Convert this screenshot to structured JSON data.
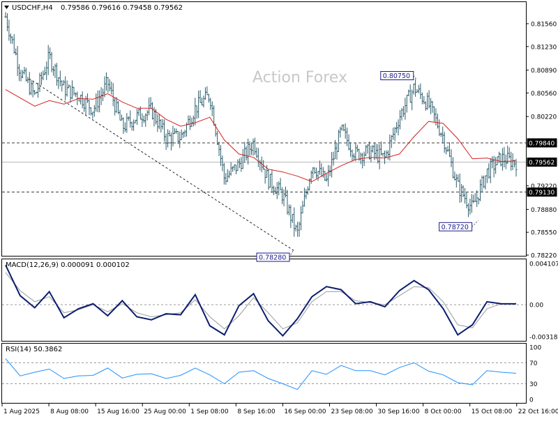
{
  "header": {
    "symbol": "USDCHF,H4",
    "ohlc": "0.79586 0.79616 0.79458 0.79562"
  },
  "watermark": "Action Forex",
  "colors": {
    "price_bars": "#2b5c6b",
    "ma_line": "#d42020",
    "macd_line": "#0b1d6e",
    "signal_line": "#9a9a9a",
    "rsi_line": "#1e90ff",
    "label_border": "#1a1a8c",
    "grid_dash": "#3c3c3c"
  },
  "price_panel": {
    "y_ticks": [
      "0.81560",
      "0.81230",
      "0.80890",
      "0.80560",
      "0.80220",
      "0.79220",
      "0.78880",
      "0.78550",
      "0.78220"
    ],
    "current_price": "0.79562",
    "levels": [
      {
        "value": 0.7984,
        "label": "0.79840"
      },
      {
        "value": 0.7913,
        "label": "0.79130"
      }
    ],
    "annotations": [
      {
        "label": "0.80750",
        "value": 0.8075,
        "date_index": 28.2
      },
      {
        "label": "0.78720",
        "value": 0.7872,
        "date_index": 32.4
      },
      {
        "label": "0.78280",
        "value": 0.7828,
        "date_index": 19.7
      }
    ]
  },
  "macd_panel": {
    "label": "MACD(12,26,9) 0.000091 0.000102",
    "y_ticks": [
      "0.004107",
      "0.00",
      "-0.00318"
    ]
  },
  "rsi_panel": {
    "label": "RSI(14) 50.3862",
    "y_ticks": [
      "100",
      "70",
      "30",
      "0"
    ]
  },
  "x_ticks": [
    "1 Aug 2025",
    "8 Aug 08:00",
    "15 Aug 16:00",
    "25 Aug 00:00",
    "1 Sep 08:00",
    "8 Sep 16:00",
    "16 Sep 00:00",
    "23 Sep 08:00",
    "30 Sep 16:00",
    "8 Oct 00:00",
    "15 Oct 08:00",
    "22 Oct 16:00"
  ],
  "chart_data": [
    {
      "type": "line",
      "title": "USDCHF,H4",
      "x_unit": "trading days since 1 Aug 2025 (approx.)",
      "x": [
        0,
        1,
        2,
        3,
        4,
        5,
        6,
        7,
        8,
        9,
        10,
        11,
        12,
        13,
        14,
        15,
        16,
        17,
        18,
        19,
        20,
        21,
        22,
        23,
        24,
        25,
        26,
        27,
        28,
        29,
        30,
        31,
        32,
        33,
        34,
        35
      ],
      "series": [
        {
          "name": "close",
          "values": [
            0.8166,
            0.8088,
            0.8052,
            0.8108,
            0.8062,
            0.8053,
            0.8032,
            0.8071,
            0.8006,
            0.8022,
            0.8031,
            0.7992,
            0.7992,
            0.8034,
            0.8053,
            0.7932,
            0.7953,
            0.7985,
            0.7931,
            0.7909,
            0.7852,
            0.7953,
            0.7928,
            0.8002,
            0.7968,
            0.7971,
            0.7962,
            0.8022,
            0.8064,
            0.8039,
            0.7993,
            0.7921,
            0.7889,
            0.7942,
            0.7962,
            0.7956
          ]
        },
        {
          "name": "MA",
          "values": [
            0.8061,
            0.8049,
            0.8037,
            0.8045,
            0.804,
            0.8048,
            0.8047,
            0.8055,
            0.8043,
            0.8034,
            0.8034,
            0.8018,
            0.8008,
            0.8013,
            0.8021,
            0.7988,
            0.7968,
            0.7963,
            0.7946,
            0.7942,
            0.7936,
            0.7928,
            0.794,
            0.7951,
            0.796,
            0.7963,
            0.7962,
            0.7968,
            0.7993,
            0.8015,
            0.8012,
            0.799,
            0.7961,
            0.7962,
            0.7957,
            0.7958
          ]
        }
      ],
      "ylim": [
        0.7822,
        0.8166
      ],
      "y_ticks": [
        0.8156,
        0.8123,
        0.8089,
        0.8056,
        0.8022,
        0.7922,
        0.7888,
        0.7855,
        0.7822
      ],
      "levels": [
        0.7984,
        0.7913
      ],
      "annotations": [
        "0.80750",
        "0.78720",
        "0.78280"
      ]
    },
    {
      "type": "line",
      "title": "MACD(12,26,9)",
      "x": [
        0,
        1,
        2,
        3,
        4,
        5,
        6,
        7,
        8,
        9,
        10,
        11,
        12,
        13,
        14,
        15,
        16,
        17,
        18,
        19,
        20,
        21,
        22,
        23,
        24,
        25,
        26,
        27,
        28,
        29,
        30,
        31,
        32,
        33,
        34,
        35
      ],
      "series": [
        {
          "name": "MACD",
          "values": [
            0.00395,
            0.0009,
            -0.0003,
            0.0013,
            -0.0013,
            -0.0004,
            0.0001,
            -0.0011,
            0.0004,
            -0.0012,
            -0.0015,
            -0.0009,
            -0.001,
            0.001,
            -0.0021,
            -0.003,
            -0.0001,
            0.0011,
            -0.0016,
            -0.0031,
            -0.0014,
            0.0008,
            0.0018,
            0.0015,
            0.0001,
            0.0003,
            -0.0002,
            0.0014,
            0.0024,
            0.0015,
            -0.0004,
            -0.003,
            -0.002,
            0.0003,
            9e-05,
            9e-05
          ]
        },
        {
          "name": "signal",
          "values": [
            0.0032,
            0.0014,
            0.0003,
            0.0008,
            -0.0008,
            -0.0005,
            0.0,
            -0.0007,
            0.0001,
            -0.0008,
            -0.0012,
            -0.001,
            -0.0008,
            0.0005,
            -0.0012,
            -0.0024,
            -0.0011,
            0.0007,
            -0.0008,
            -0.0024,
            -0.0018,
            0.0003,
            0.0013,
            0.0013,
            0.0004,
            0.0002,
            0.0,
            0.0009,
            0.0018,
            0.0017,
            0.0003,
            -0.002,
            -0.0023,
            -0.0004,
            0.0001,
            0.0001
          ]
        }
      ],
      "ylim": [
        -0.00318,
        0.004107
      ]
    },
    {
      "type": "line",
      "title": "RSI(14)",
      "x": [
        0,
        1,
        2,
        3,
        4,
        5,
        6,
        7,
        8,
        9,
        10,
        11,
        12,
        13,
        14,
        15,
        16,
        17,
        18,
        19,
        20,
        21,
        22,
        23,
        24,
        25,
        26,
        27,
        28,
        29,
        30,
        31,
        32,
        33,
        34,
        35
      ],
      "series": [
        {
          "name": "RSI",
          "values": [
            78,
            45,
            52,
            58,
            40,
            45,
            46,
            60,
            41,
            48,
            49,
            40,
            46,
            60,
            47,
            30,
            52,
            55,
            40,
            30,
            19,
            55,
            48,
            65,
            55,
            55,
            47,
            61,
            70,
            54,
            47,
            32,
            28,
            55,
            52,
            50
          ]
        }
      ],
      "ylim": [
        0,
        100
      ],
      "y_ticks": [
        100,
        70,
        30,
        0
      ],
      "levels": [
        70,
        30
      ]
    }
  ]
}
